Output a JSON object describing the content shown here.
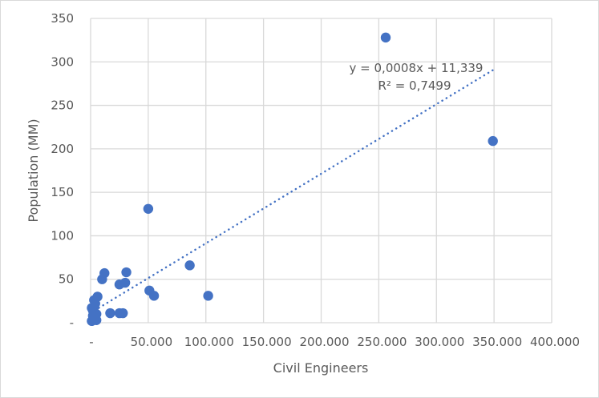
{
  "chart_data": {
    "type": "scatter",
    "title": "",
    "xlabel": "Civil Engineers",
    "ylabel": "Population (MM)",
    "xlim": [
      0,
      400000
    ],
    "ylim": [
      0,
      350
    ],
    "x_ticks": [
      0,
      50000,
      100000,
      150000,
      200000,
      250000,
      300000,
      350000,
      400000
    ],
    "x_tick_labels": [
      "-",
      "50.000",
      "100.000",
      "150.000",
      "200.000",
      "250.000",
      "300.000",
      "350.000",
      "400.000"
    ],
    "y_ticks": [
      0,
      50,
      100,
      150,
      200,
      250,
      300,
      350
    ],
    "y_tick_labels": [
      "-",
      "50",
      "100",
      "150",
      "200",
      "250",
      "300",
      "350"
    ],
    "grid": true,
    "legend": "none",
    "marker_color": "#4472c4",
    "grid_color": "#d9d9d9",
    "series": [
      {
        "name": "Population",
        "x": [
          256000,
          349000,
          50000,
          12000,
          31000,
          10000,
          86000,
          25000,
          30000,
          51000,
          55000,
          102000,
          17000,
          25000,
          28000,
          6000,
          3000,
          3000,
          2000,
          5000,
          3000,
          1000,
          5000,
          1000,
          4000,
          2000
        ],
        "y": [
          328,
          209,
          131,
          57,
          58,
          50,
          66,
          44,
          46,
          37,
          31,
          31,
          11,
          11,
          11,
          30,
          26,
          18,
          14,
          10,
          5,
          2,
          3,
          17,
          22,
          8
        ]
      }
    ],
    "trendline": {
      "type": "linear",
      "slope": 0.0008,
      "intercept": 11.339,
      "x_range": [
        0,
        350000
      ],
      "equation_label": "y = 0,0008x + 11,339",
      "r2_label": "R² = 0,7499",
      "style": "dotted"
    }
  }
}
